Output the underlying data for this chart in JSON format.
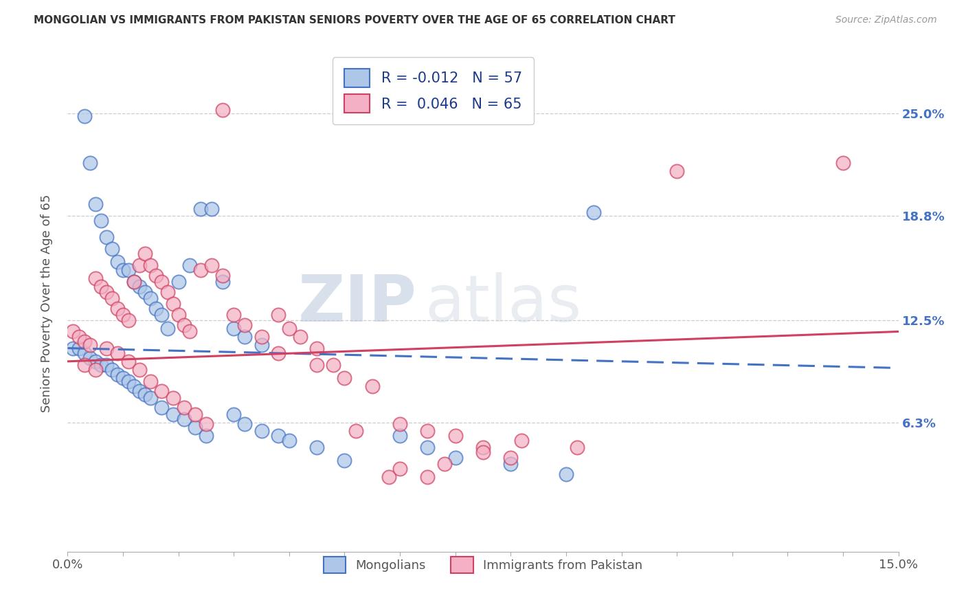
{
  "title": "MONGOLIAN VS IMMIGRANTS FROM PAKISTAN SENIORS POVERTY OVER THE AGE OF 65 CORRELATION CHART",
  "source": "Source: ZipAtlas.com",
  "ylabel": "Seniors Poverty Over the Age of 65",
  "xlim": [
    0.0,
    0.15
  ],
  "ylim": [
    -0.015,
    0.285
  ],
  "ytick_values": [
    0.063,
    0.125,
    0.188,
    0.25
  ],
  "ytick_labels": [
    "6.3%",
    "12.5%",
    "18.8%",
    "25.0%"
  ],
  "series1_label": "Mongolians",
  "series2_label": "Immigrants from Pakistan",
  "color1": "#aec6e8",
  "color2": "#f4b0c4",
  "trendline1_color": "#4472c4",
  "trendline2_color": "#d04060",
  "watermark_zip": "ZIP",
  "watermark_atlas": "atlas",
  "R1": -0.012,
  "N1": 57,
  "R2": 0.046,
  "N2": 65,
  "trendline1_y0": 0.108,
  "trendline1_y1": 0.096,
  "trendline2_y0": 0.1,
  "trendline2_y1": 0.118,
  "mongolian_x": [
    0.003,
    0.004,
    0.005,
    0.006,
    0.007,
    0.008,
    0.009,
    0.01,
    0.011,
    0.012,
    0.013,
    0.014,
    0.015,
    0.016,
    0.017,
    0.018,
    0.02,
    0.022,
    0.024,
    0.026,
    0.028,
    0.03,
    0.032,
    0.035,
    0.001,
    0.002,
    0.003,
    0.004,
    0.005,
    0.006,
    0.007,
    0.008,
    0.009,
    0.01,
    0.011,
    0.012,
    0.013,
    0.014,
    0.015,
    0.017,
    0.019,
    0.021,
    0.023,
    0.025,
    0.03,
    0.032,
    0.035,
    0.038,
    0.04,
    0.045,
    0.05,
    0.06,
    0.065,
    0.07,
    0.08,
    0.09,
    0.095
  ],
  "mongolian_y": [
    0.248,
    0.22,
    0.195,
    0.185,
    0.175,
    0.168,
    0.16,
    0.155,
    0.155,
    0.148,
    0.145,
    0.142,
    0.138,
    0.132,
    0.128,
    0.12,
    0.148,
    0.158,
    0.192,
    0.192,
    0.148,
    0.12,
    0.115,
    0.11,
    0.108,
    0.108,
    0.105,
    0.102,
    0.1,
    0.098,
    0.098,
    0.095,
    0.092,
    0.09,
    0.088,
    0.085,
    0.082,
    0.08,
    0.078,
    0.072,
    0.068,
    0.065,
    0.06,
    0.055,
    0.068,
    0.062,
    0.058,
    0.055,
    0.052,
    0.048,
    0.04,
    0.055,
    0.048,
    0.042,
    0.038,
    0.032,
    0.19
  ],
  "pakistan_x": [
    0.001,
    0.002,
    0.003,
    0.004,
    0.005,
    0.006,
    0.007,
    0.008,
    0.009,
    0.01,
    0.011,
    0.012,
    0.013,
    0.014,
    0.015,
    0.016,
    0.017,
    0.018,
    0.019,
    0.02,
    0.021,
    0.022,
    0.024,
    0.026,
    0.028,
    0.03,
    0.032,
    0.035,
    0.038,
    0.04,
    0.042,
    0.045,
    0.048,
    0.05,
    0.055,
    0.06,
    0.065,
    0.07,
    0.075,
    0.08,
    0.003,
    0.005,
    0.007,
    0.009,
    0.011,
    0.013,
    0.015,
    0.017,
    0.019,
    0.021,
    0.023,
    0.025,
    0.028,
    0.038,
    0.045,
    0.052,
    0.058,
    0.065,
    0.11,
    0.14,
    0.092,
    0.082,
    0.075,
    0.068,
    0.06
  ],
  "pakistan_y": [
    0.118,
    0.115,
    0.112,
    0.11,
    0.15,
    0.145,
    0.142,
    0.138,
    0.132,
    0.128,
    0.125,
    0.148,
    0.158,
    0.165,
    0.158,
    0.152,
    0.148,
    0.142,
    0.135,
    0.128,
    0.122,
    0.118,
    0.155,
    0.158,
    0.152,
    0.128,
    0.122,
    0.115,
    0.105,
    0.12,
    0.115,
    0.108,
    0.098,
    0.09,
    0.085,
    0.062,
    0.058,
    0.055,
    0.048,
    0.042,
    0.098,
    0.095,
    0.108,
    0.105,
    0.1,
    0.095,
    0.088,
    0.082,
    0.078,
    0.072,
    0.068,
    0.062,
    0.252,
    0.128,
    0.098,
    0.058,
    0.03,
    0.03,
    0.215,
    0.22,
    0.048,
    0.052,
    0.045,
    0.038,
    0.035
  ]
}
